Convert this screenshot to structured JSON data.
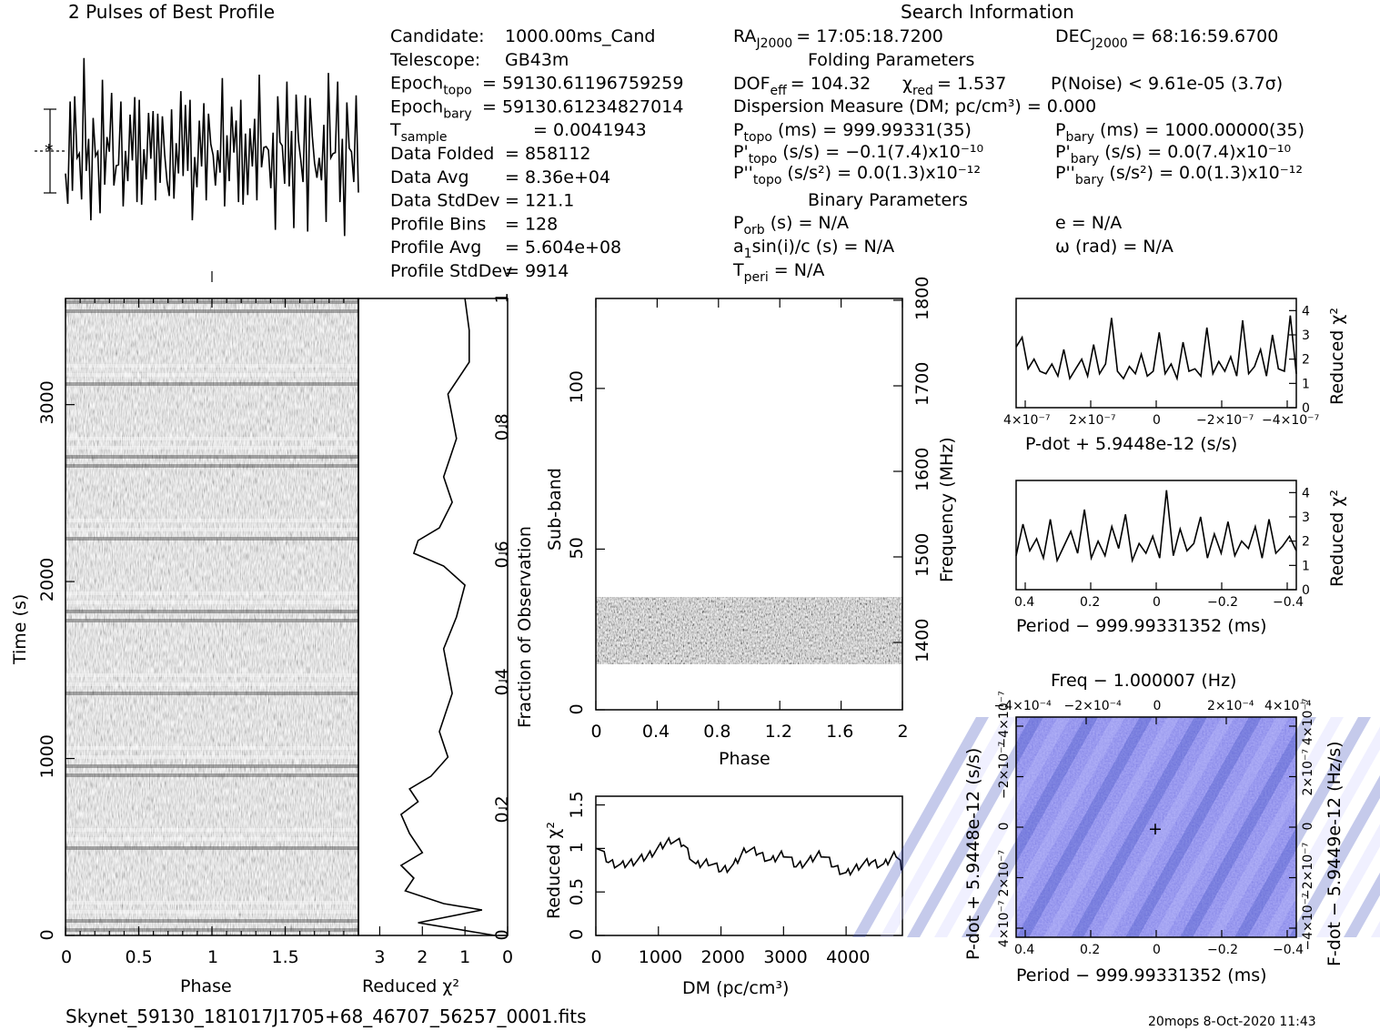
{
  "header": {
    "profile_title": "2 Pulses of Best Profile",
    "search_title": "Search Information",
    "folding_title": "Folding Parameters",
    "binary_title": "Binary Parameters",
    "footer_file": "Skynet_59130_181017J1705+68_46707_56257_0001.fits",
    "footer_stamp": "20mops   8-Oct-2020 11:43"
  },
  "info_left": [
    {
      "label": "Candidate:",
      "value": "1000.00ms_Cand"
    },
    {
      "label": "Telescope:",
      "value": "GB43m"
    },
    {
      "label": "Epoch",
      "sub": "topo",
      "value": "= 59130.61196759259"
    },
    {
      "label": "Epoch",
      "sub": "bary",
      "value": "= 59130.61234827014"
    },
    {
      "label": "T",
      "sub": "sample",
      "value": "=    0.0041943"
    },
    {
      "label": "Data Folded",
      "value": "=    858112"
    },
    {
      "label": "Data Avg",
      "value": "=    8.36e+04"
    },
    {
      "label": "Data StdDev",
      "value": "=    121.1"
    },
    {
      "label": "Profile Bins",
      "value": "=    128"
    },
    {
      "label": "Profile Avg",
      "value": "=    5.604e+08"
    },
    {
      "label": "Profile StdDev",
      "value": "=    9914"
    }
  ],
  "info_right": {
    "ra_label": "RA",
    "ra_sub": "J2000",
    "ra_value": "= 17:05:18.7200",
    "dec_label": "DEC",
    "dec_sub": "J2000",
    "dec_value": "= 68:16:59.6700",
    "dof_label": "DOF",
    "dof_sub": "eff",
    "dof_value": "= 104.32",
    "chi_label": "χ",
    "chi_sub": "red",
    "chi_value": "= 1.537",
    "pnoise": "P(Noise) < 9.61e-05   (3.7σ)",
    "dm_line": "Dispersion Measure (DM; pc/cm³) = 0.000",
    "ptopo": "P",
    "ptopo_sub": "topo",
    "ptopo_value": "(ms) =   999.99331(35)",
    "pbary": "P",
    "pbary_sub": "bary",
    "pbary_value": "(ms) =   1000.00000(35)",
    "pdtopo": "P'",
    "pdtopo_sub": "topo",
    "pdtopo_value": "(s/s) = −0.1(7.4)x10⁻¹⁰",
    "pdbary": "P'",
    "pdbary_sub": "bary",
    "pdbary_value": "(s/s) = 0.0(7.4)x10⁻¹⁰",
    "pddtopo": "P''",
    "pddtopo_sub": "topo",
    "pddtopo_value": "(s/s²) = 0.0(1.3)x10⁻¹²",
    "pddbary": "P''",
    "pddbary_sub": "bary",
    "pddbary_value": "(s/s²) = 0.0(1.3)x10⁻¹²",
    "porb": "P",
    "porb_sub": "orb",
    "porb_value": "(s) = N/A",
    "ecc": "e = N/A",
    "asini": "a",
    "asini_sub": "1",
    "asini_value": "sin(i)/c (s) = N/A",
    "omega": "ω (rad) = N/A",
    "tperi": "T",
    "tperi_sub": "peri",
    "tperi_value": "= N/A"
  },
  "colors": {
    "ink": "#000000",
    "ppdot_bg": "#6f6ff0",
    "ppdot_dark": "#2f3fb8",
    "ppdot_light": "#c8c8ff"
  },
  "chart_data": [
    {
      "type": "line",
      "name": "profile",
      "title": "2 Pulses of Best Profile",
      "description_values": [
        0.55,
        0.2,
        0.7,
        0.4,
        0.85,
        0.3,
        0.6,
        0.15,
        0.9,
        0.45,
        0.5,
        0.25,
        0.75,
        0.35,
        0.65,
        0.1,
        0.8,
        0.4,
        0.55,
        0.3,
        0.95,
        0.2,
        0.6,
        0.45,
        0.7,
        0.3,
        0.5,
        0.15,
        0.85,
        0.4,
        0.65,
        0.25,
        0.75,
        0.35,
        0.55,
        0.2,
        0.9,
        0.45,
        0.6,
        0.3,
        0.7,
        0.1,
        0.8,
        0.4,
        0.5,
        0.25,
        0.65,
        0.35,
        0.55,
        0.2,
        1.0,
        0.3,
        0.6,
        0.45,
        0.75,
        0.25,
        0.5,
        0.15,
        0.85,
        0.4,
        0.65,
        0.3,
        0.7,
        0.35
      ]
    },
    {
      "type": "heatmap",
      "name": "time-phase",
      "xlabel": "Phase",
      "ylabel": "Time (s)",
      "xlim": [
        0,
        2
      ],
      "ylim": [
        0,
        3600
      ],
      "xticks": [
        "0",
        "0.5",
        "1",
        "1.5"
      ],
      "yticks": [
        "0",
        "1000",
        "2000",
        "3000"
      ],
      "right_label": "Fraction of Observation",
      "right_ticks": [
        "0",
        "0.2",
        "0.4",
        "0.6",
        "0.8",
        "1"
      ]
    },
    {
      "type": "line",
      "name": "chi-vs-fraction",
      "xlabel": "Reduced χ²",
      "xticks": [
        "3",
        "2",
        "1",
        "0"
      ],
      "xlim": [
        3.5,
        0
      ],
      "y": [
        0.0,
        0.02,
        0.04,
        0.05,
        0.07,
        0.09,
        0.11,
        0.13,
        0.16,
        0.19,
        0.21,
        0.23,
        0.25,
        0.28,
        0.32,
        0.38,
        0.45,
        0.5,
        0.55,
        0.58,
        0.6,
        0.62,
        0.64,
        0.68,
        0.72,
        0.78,
        0.85,
        0.9,
        0.95,
        1.0
      ],
      "x": [
        0.3,
        2.1,
        0.6,
        1.5,
        2.4,
        2.2,
        2.5,
        2.0,
        2.3,
        2.5,
        2.1,
        2.3,
        1.8,
        1.4,
        1.6,
        1.3,
        1.5,
        1.2,
        1.0,
        1.5,
        2.2,
        2.1,
        1.6,
        1.3,
        1.5,
        1.2,
        1.4,
        0.9,
        0.9,
        1.0
      ]
    },
    {
      "type": "heatmap",
      "name": "subband-phase",
      "xlabel": "Phase",
      "ylabel": "Sub-band",
      "xlim": [
        0,
        2
      ],
      "ylim": [
        0,
        128
      ],
      "xticks": [
        "0",
        "0.4",
        "0.8",
        "1.2",
        "1.6",
        "2"
      ],
      "yticks": [
        "0",
        "50",
        "100"
      ],
      "right_label": "Frequency (MHz)",
      "right_ticks": [
        "1400",
        "1500",
        "1600",
        "1700",
        "1800"
      ],
      "band_range": [
        14,
        35
      ]
    },
    {
      "type": "line",
      "name": "dm-curve",
      "xlabel": "DM (pc/cm³)",
      "ylabel": "Reduced χ²",
      "xlim": [
        0,
        4900
      ],
      "ylim": [
        0,
        1.6
      ],
      "xticks": [
        "0",
        "1000",
        "2000",
        "3000",
        "4000"
      ],
      "yticks": [
        "0",
        "0.5",
        "1",
        "1.5"
      ],
      "x": [
        0,
        200,
        400,
        600,
        800,
        1000,
        1200,
        1400,
        1600,
        1800,
        2000,
        2200,
        2400,
        2600,
        2800,
        3000,
        3200,
        3400,
        3600,
        3800,
        4000,
        4200,
        4400,
        4600,
        4800,
        4900
      ],
      "values": [
        1.05,
        0.85,
        0.8,
        0.85,
        0.9,
        1.0,
        1.1,
        1.05,
        0.8,
        0.85,
        0.75,
        0.8,
        1.0,
        0.95,
        0.85,
        0.95,
        0.8,
        0.85,
        0.95,
        0.8,
        0.7,
        0.8,
        0.85,
        0.8,
        0.95,
        0.75
      ]
    },
    {
      "type": "line",
      "name": "chi-vs-pdot",
      "xlabel": "P-dot + 5.9448e-12 (s/s)",
      "ylabel": "Reduced χ²",
      "xticks": [
        "4×10⁻⁷",
        "2×10⁻⁷",
        "0",
        "−2×10⁻⁷",
        "−4×10⁻⁷"
      ],
      "yticks": [
        "0",
        "1",
        "2",
        "3",
        "4"
      ],
      "ylim": [
        0,
        4.5
      ],
      "values": [
        2.5,
        2.9,
        1.6,
        2.0,
        1.5,
        1.4,
        1.8,
        1.3,
        2.4,
        1.2,
        1.6,
        2.0,
        1.3,
        2.6,
        1.4,
        1.8,
        3.7,
        1.5,
        1.2,
        1.7,
        1.4,
        2.2,
        1.3,
        1.5,
        3.1,
        1.4,
        1.8,
        1.2,
        2.7,
        1.5,
        1.6,
        1.3,
        3.3,
        1.4,
        1.9,
        1.5,
        2.1,
        1.3,
        3.6,
        1.4,
        1.7,
        2.4,
        1.3,
        3.0,
        1.6,
        1.5,
        3.8,
        1.4
      ]
    },
    {
      "type": "line",
      "name": "chi-vs-period",
      "xlabel": "Period − 999.99331352 (ms)",
      "ylabel": "Reduced χ²",
      "xticks": [
        "0.4",
        "0.2",
        "0",
        "−0.2",
        "−0.4"
      ],
      "yticks": [
        "0",
        "1",
        "2",
        "3",
        "4"
      ],
      "ylim": [
        0,
        4.5
      ],
      "values": [
        1.4,
        2.7,
        1.6,
        2.1,
        1.3,
        2.9,
        1.2,
        1.8,
        2.4,
        1.5,
        3.3,
        1.3,
        2.0,
        1.4,
        2.6,
        1.7,
        3.1,
        1.2,
        1.9,
        1.5,
        2.2,
        1.3,
        4.1,
        1.4,
        2.5,
        1.6,
        1.9,
        3.0,
        1.3,
        2.3,
        1.5,
        2.8,
        1.4,
        2.0,
        1.7,
        2.6,
        1.3,
        2.9,
        1.5,
        1.8,
        2.2,
        1.6
      ]
    },
    {
      "type": "heatmap",
      "name": "p-pdot",
      "title": "Freq − 1.000007 (Hz)",
      "xlabel": "Period − 999.99331352 (ms)",
      "ylabel": "P-dot + 5.9448e-12 (s/s)",
      "right_label": "F-dot − 5.9449e-12 (Hz/s)",
      "xticks": [
        "0.4",
        "0.2",
        "0",
        "−0.2",
        "−0.4"
      ],
      "top_ticks": [
        "−4×10⁻⁴",
        "−2×10⁻⁴",
        "0",
        "2×10⁻⁴",
        "4×10⁻⁴"
      ],
      "yticks": [
        "4×10⁻⁷",
        "2×10⁻⁷",
        "0",
        "−2×10⁻⁷",
        "−4×10⁻⁷"
      ],
      "right_ticks": [
        "−4×10⁻⁷",
        "−2×10⁻⁷",
        "0",
        "2×10⁻⁷",
        "4×10⁻⁷"
      ]
    }
  ]
}
